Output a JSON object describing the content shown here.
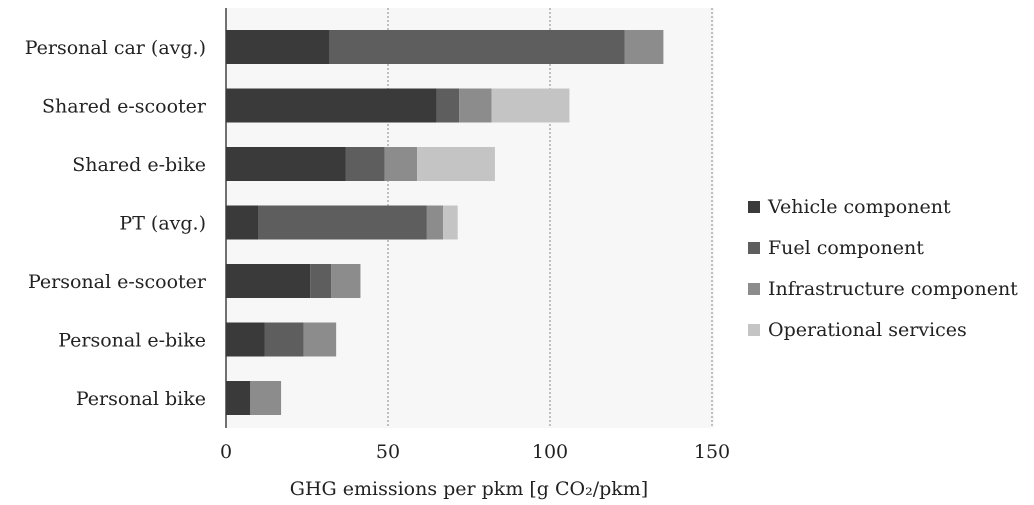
{
  "chart_data": {
    "type": "bar",
    "orientation": "horizontal",
    "stacked": true,
    "categories": [
      "Personal car (avg.)",
      "Shared e-scooter",
      "Shared e-bike",
      "PT (avg.)",
      "Personal e-scooter",
      "Personal e-bike",
      "Personal bike"
    ],
    "series": [
      {
        "name": "Vehicle component",
        "values": [
          32,
          65,
          37,
          10,
          26,
          12,
          7.5
        ],
        "color": "#3a3a3a"
      },
      {
        "name": "Fuel component",
        "values": [
          91,
          7,
          12,
          52,
          6.5,
          12,
          0
        ],
        "color": "#5e5e5e"
      },
      {
        "name": "Infrastructure component",
        "values": [
          12,
          10,
          10,
          5,
          9,
          10,
          9.5
        ],
        "color": "#8c8c8c"
      },
      {
        "name": "Operational services",
        "values": [
          0,
          24,
          24,
          4.5,
          0,
          0,
          0
        ],
        "color": "#c4c4c4"
      }
    ],
    "xlabel": "GHG emissions per pkm [g CO₂/pkm]",
    "xlim": [
      0,
      150
    ],
    "xticks": [
      0,
      50,
      100,
      150
    ],
    "grid": "vertical dashed",
    "plot_background": "#f7f7f7",
    "legend_position": "right"
  }
}
